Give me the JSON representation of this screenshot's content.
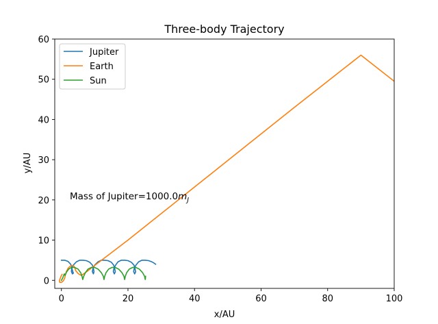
{
  "chart_data": {
    "type": "line",
    "title": "Three-body Trajectory",
    "xlabel": "x/AU",
    "ylabel": "y/AU",
    "xlim": [
      -2,
      100
    ],
    "ylim": [
      -2,
      60
    ],
    "xticks": [
      0,
      20,
      40,
      60,
      80,
      100
    ],
    "yticks": [
      0,
      10,
      20,
      30,
      40,
      50,
      60
    ],
    "grid": false,
    "legend_position": "top-left",
    "annotation": {
      "text_prefix": "Mass of Jupiter=1000.0",
      "math": "m",
      "math_sub": "J",
      "x": 2.5,
      "y": 20
    },
    "series": [
      {
        "name": "Jupiter",
        "color": "#1f77b4",
        "x": [
          0,
          1.0,
          2.0,
          2.8,
          3.1,
          3.4,
          3.6,
          3.3,
          3.0,
          3.1,
          3.6,
          4.5,
          5.5,
          6.5,
          7.5,
          8.5,
          9.3,
          9.6,
          9.8,
          9.6,
          9.3,
          9.5,
          10.0,
          11.0,
          12.0,
          13.0,
          14.0,
          15.0,
          15.7,
          16.0,
          16.2,
          15.9,
          15.6,
          15.8,
          16.3,
          17.0,
          18.0,
          19.0,
          20.0,
          21.0,
          21.8,
          22.1,
          22.3,
          22.0,
          21.7,
          21.9,
          22.4,
          23.2,
          24.2,
          25.2,
          26.2,
          27.2,
          28.0,
          28.3
        ],
        "y": [
          5.0,
          5.0,
          4.7,
          4.0,
          3.2,
          2.2,
          1.8,
          1.6,
          2.2,
          3.0,
          3.8,
          4.6,
          5.0,
          5.0,
          4.9,
          4.5,
          3.8,
          3.0,
          2.1,
          1.6,
          2.2,
          3.0,
          3.8,
          4.6,
          5.0,
          5.0,
          4.9,
          4.5,
          3.8,
          3.0,
          2.1,
          1.6,
          2.2,
          3.0,
          3.8,
          4.6,
          5.0,
          5.0,
          4.9,
          4.5,
          3.8,
          3.0,
          2.1,
          1.6,
          2.2,
          3.0,
          3.8,
          4.6,
          5.0,
          5.0,
          4.9,
          4.6,
          4.2,
          4.0
        ]
      },
      {
        "name": "Earth",
        "color": "#ff7f0e",
        "x": [
          0.2,
          0.0,
          -0.3,
          -0.6,
          -0.5,
          0.0,
          0.6,
          1.0,
          1.2,
          1.5,
          2.0,
          2.6,
          3.2,
          3.7,
          4.0,
          4.3,
          5.0,
          6.0,
          8.0,
          10.0,
          20.0,
          30.0,
          40.0,
          50.0,
          60.0,
          70.0,
          80.0,
          90.0,
          100.0
        ],
        "y": [
          1.5,
          1.2,
          0.6,
          -0.1,
          -0.5,
          -0.5,
          -0.1,
          0.6,
          1.4,
          2.2,
          3.0,
          3.5,
          3.7,
          3.6,
          3.2,
          2.4,
          1.7,
          1.2,
          2.4,
          3.7,
          10.0,
          16.6,
          23.2,
          29.8,
          36.4,
          43.0,
          49.5,
          56.0,
          49.5
        ]
      },
      {
        "name": "Sun",
        "color": "#2ca02c",
        "x": [
          0.0,
          0.4,
          0.7,
          0.9,
          1.1,
          1.5,
          2.2,
          3.0,
          4.0,
          5.0,
          5.8,
          6.2,
          6.4,
          6.7,
          7.2,
          8.0,
          9.0,
          10.0,
          11.0,
          12.0,
          12.6,
          12.8,
          13.0,
          13.4,
          14.2,
          15.2,
          16.2,
          17.2,
          18.2,
          18.8,
          19.0,
          19.2,
          19.6,
          20.4,
          21.4,
          22.4,
          23.4,
          24.4,
          25.0,
          25.2,
          25.3
        ],
        "y": [
          0.0,
          0.6,
          1.3,
          1.6,
          1.2,
          2.0,
          2.8,
          3.2,
          3.2,
          2.8,
          1.9,
          1.0,
          0.2,
          1.0,
          1.9,
          2.8,
          3.2,
          3.2,
          2.8,
          1.9,
          1.0,
          0.2,
          1.0,
          1.9,
          2.8,
          3.2,
          3.2,
          2.8,
          1.9,
          1.0,
          0.2,
          1.0,
          1.9,
          2.8,
          3.2,
          3.2,
          2.8,
          1.9,
          1.0,
          0.2,
          1.0
        ]
      }
    ]
  }
}
